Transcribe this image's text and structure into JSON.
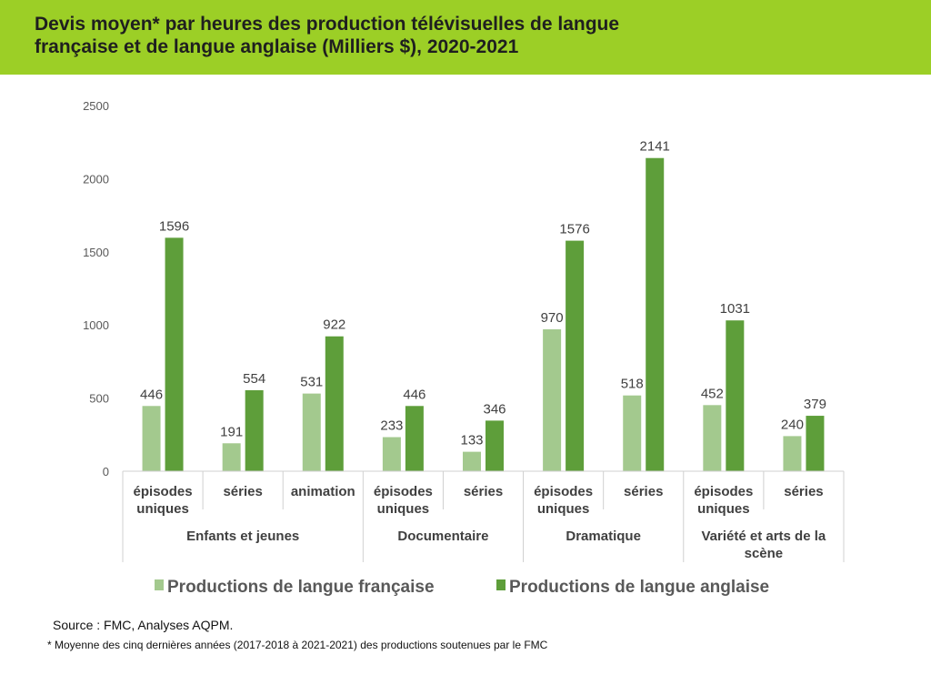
{
  "title": {
    "line1": "Devis moyen* par heures des production télévisuelles de langue",
    "line2": "française et de langue anglaise (Milliers $), 2020-2021"
  },
  "colors": {
    "band": "#9ccf26",
    "series_fr": "#a3c98e",
    "series_en": "#5e9e3a"
  },
  "chart_data": {
    "type": "bar",
    "ylim": [
      0,
      2500
    ],
    "yticks": [
      0,
      500,
      1000,
      1500,
      2000,
      2500
    ],
    "grid": false,
    "legend_position": "bottom",
    "categories": [
      [
        "épisodes",
        "uniques"
      ],
      [
        "séries"
      ],
      [
        "animation"
      ],
      [
        "épisodes",
        "uniques"
      ],
      [
        "séries"
      ],
      [
        "épisodes",
        "uniques"
      ],
      [
        "séries"
      ],
      [
        "épisodes",
        "uniques"
      ],
      [
        "séries"
      ]
    ],
    "groups": [
      {
        "label": [
          "Enfants et jeunes"
        ],
        "count": 3
      },
      {
        "label": [
          "Documentaire"
        ],
        "count": 2
      },
      {
        "label": [
          "Dramatique"
        ],
        "count": 2
      },
      {
        "label": [
          "Variété et arts de la",
          "scène"
        ],
        "count": 2
      }
    ],
    "series": [
      {
        "name": "Productions de langue française",
        "values": [
          446,
          191,
          531,
          233,
          133,
          970,
          518,
          452,
          240
        ]
      },
      {
        "name": "Productions de langue anglaise",
        "values": [
          1596,
          554,
          922,
          446,
          346,
          1576,
          2141,
          1031,
          379
        ]
      }
    ]
  },
  "source": "Source : FMC, Analyses AQPM.",
  "footnote": "* Moyenne des cinq dernières années (2017-2018 à 2021-2021) des productions soutenues par le FMC"
}
